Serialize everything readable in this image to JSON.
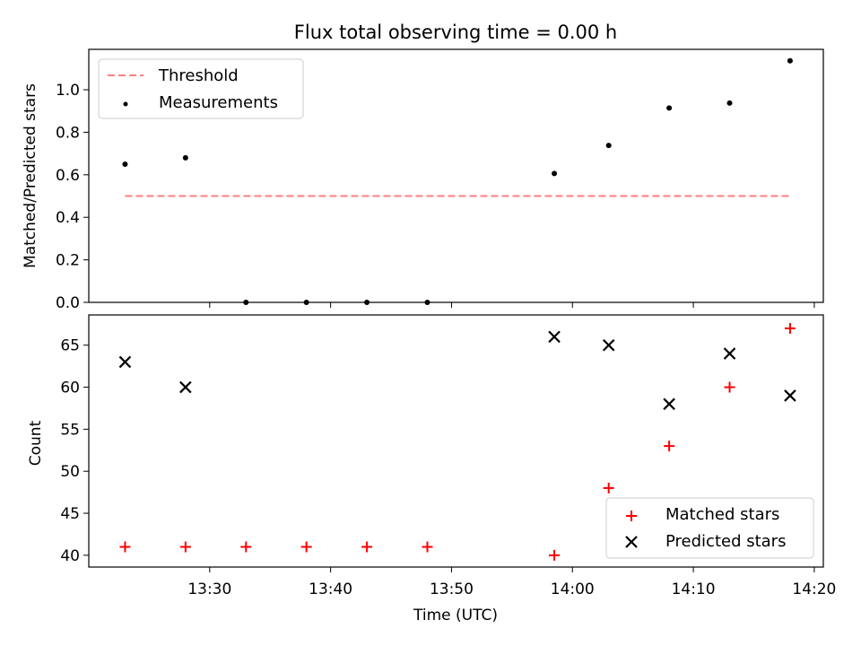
{
  "chart_data": [
    {
      "type": "scatter",
      "title": "Flux total observing time = 0.00 h",
      "xlabel": "",
      "ylabel": "Matched/Predicted stars",
      "ylim": [
        0.0,
        1.19
      ],
      "yticks": [
        {
          "value": 0.0,
          "label": "0.0"
        },
        {
          "value": 0.2,
          "label": "0.2"
        },
        {
          "value": 0.4,
          "label": "0.4"
        },
        {
          "value": 0.6,
          "label": "0.6"
        },
        {
          "value": 0.8,
          "label": "0.8"
        },
        {
          "value": 1.0,
          "label": "1.0"
        }
      ],
      "legend_position": "top-left",
      "threshold": {
        "name": "Threshold",
        "value": 0.5,
        "x_range": [
          "13:23",
          "14:18"
        ],
        "color": "#ff7f7f",
        "style": "dashed"
      },
      "series": [
        {
          "name": "Measurements",
          "color": "#000000",
          "marker": "dot",
          "points": [
            {
              "x": "13:23",
              "y": 0.65
            },
            {
              "x": "13:28",
              "y": 0.68
            },
            {
              "x": "13:33",
              "y": 0.0
            },
            {
              "x": "13:38",
              "y": 0.0
            },
            {
              "x": "13:43",
              "y": 0.0
            },
            {
              "x": "13:48",
              "y": 0.0
            },
            {
              "x": "13:58:30",
              "y": 0.606
            },
            {
              "x": "14:03",
              "y": 0.738
            },
            {
              "x": "14:08",
              "y": 0.914
            },
            {
              "x": "14:13",
              "y": 0.9375
            },
            {
              "x": "14:18",
              "y": 1.136
            }
          ]
        }
      ]
    },
    {
      "type": "scatter",
      "title": "",
      "xlabel": "Time (UTC)",
      "ylabel": "Count",
      "xlim": [
        "13:20",
        "14:20:45"
      ],
      "ylim": [
        38.6,
        68.6
      ],
      "xticks": [
        {
          "value": "13:30",
          "label": "13:30"
        },
        {
          "value": "13:40",
          "label": "13:40"
        },
        {
          "value": "13:50",
          "label": "13:50"
        },
        {
          "value": "14:00",
          "label": "14:00"
        },
        {
          "value": "14:10",
          "label": "14:10"
        },
        {
          "value": "14:20",
          "label": "14:20"
        }
      ],
      "yticks": [
        {
          "value": 40,
          "label": "40"
        },
        {
          "value": 45,
          "label": "45"
        },
        {
          "value": 50,
          "label": "50"
        },
        {
          "value": 55,
          "label": "55"
        },
        {
          "value": 60,
          "label": "60"
        },
        {
          "value": 65,
          "label": "65"
        }
      ],
      "legend_position": "bottom-right",
      "series": [
        {
          "name": "Matched stars",
          "color": "#ff0000",
          "marker": "plus",
          "points": [
            {
              "x": "13:23",
              "y": 41
            },
            {
              "x": "13:28",
              "y": 41
            },
            {
              "x": "13:33",
              "y": 41
            },
            {
              "x": "13:38",
              "y": 41
            },
            {
              "x": "13:43",
              "y": 41
            },
            {
              "x": "13:48",
              "y": 41
            },
            {
              "x": "13:58:30",
              "y": 40
            },
            {
              "x": "14:03",
              "y": 48
            },
            {
              "x": "14:08",
              "y": 53
            },
            {
              "x": "14:13",
              "y": 60
            },
            {
              "x": "14:18",
              "y": 67
            }
          ]
        },
        {
          "name": "Predicted stars",
          "color": "#000000",
          "marker": "x",
          "points": [
            {
              "x": "13:23",
              "y": 63
            },
            {
              "x": "13:28",
              "y": 60
            },
            {
              "x": "13:58:30",
              "y": 66
            },
            {
              "x": "14:03",
              "y": 65
            },
            {
              "x": "14:08",
              "y": 58
            },
            {
              "x": "14:13",
              "y": 64
            },
            {
              "x": "14:18",
              "y": 59
            }
          ]
        }
      ]
    }
  ]
}
